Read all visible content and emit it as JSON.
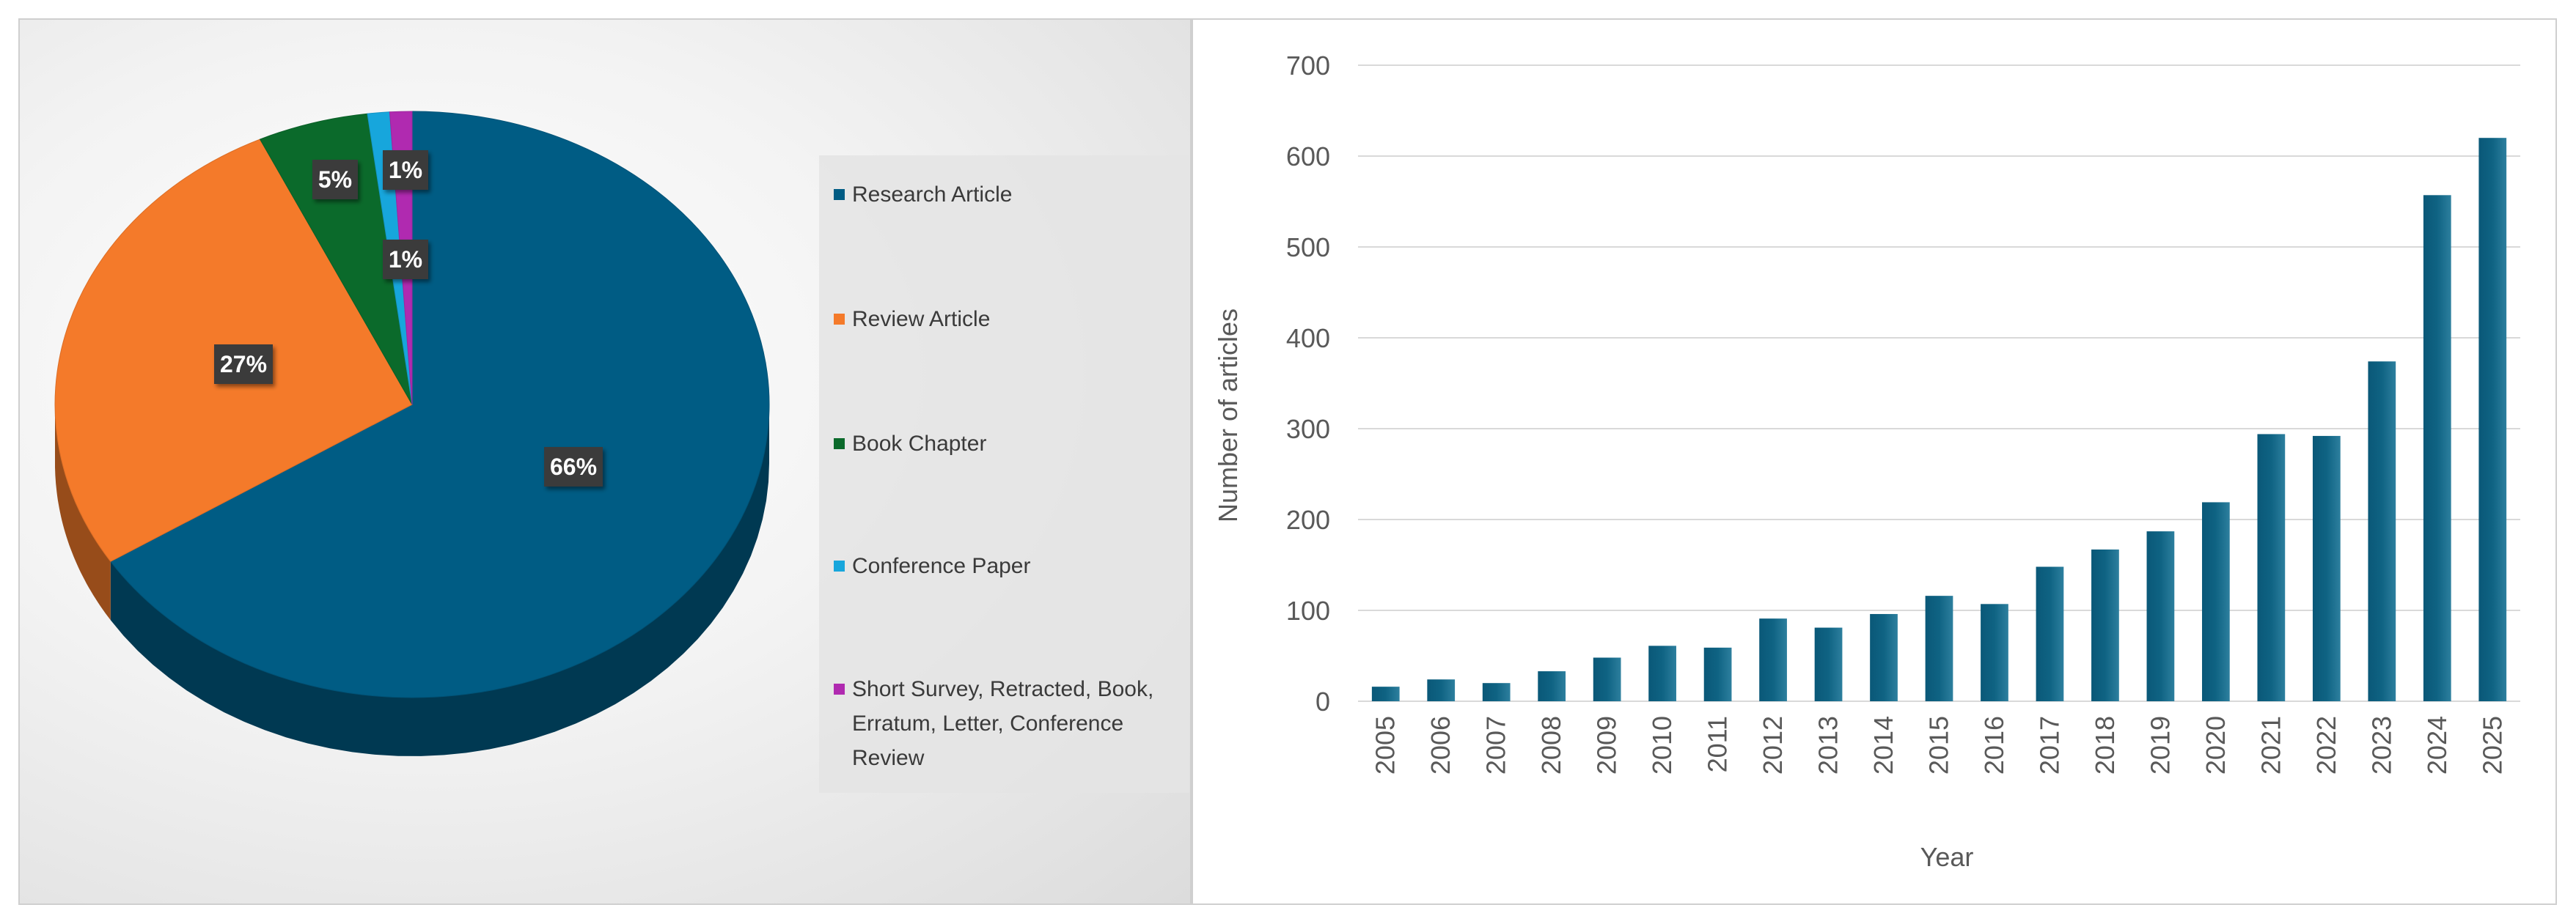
{
  "chart_data": [
    {
      "type": "pie",
      "categories": [
        "Research Article",
        "Review Article",
        "Book Chapter",
        "Conference Paper",
        "Short Survey, Retracted, Book, Erratum, Letter, Conference Review"
      ],
      "values": [
        66,
        27,
        5,
        1,
        1
      ],
      "value_labels": [
        "66%",
        "27%",
        "5%",
        "1%",
        "1%"
      ],
      "colors": [
        "#005c84",
        "#f47a2a",
        "#0b6a2b",
        "#17a6dc",
        "#b02ab0"
      ],
      "legend_position": "right",
      "style": "3d"
    },
    {
      "type": "bar",
      "categories": [
        "2005",
        "2006",
        "2007",
        "2008",
        "2009",
        "2010",
        "2011",
        "2012",
        "2013",
        "2014",
        "2015",
        "2016",
        "2017",
        "2018",
        "2019",
        "2020",
        "2021",
        "2022",
        "2023",
        "2024",
        "2025"
      ],
      "values": [
        16,
        24,
        20,
        33,
        48,
        61,
        59,
        91,
        81,
        96,
        116,
        107,
        148,
        167,
        187,
        219,
        294,
        292,
        374,
        557,
        620
      ],
      "xlabel": "Year",
      "ylabel": "Number of articles",
      "ylim": [
        0,
        700
      ],
      "yticks": [
        0,
        100,
        200,
        300,
        400,
        500,
        600,
        700
      ],
      "grid": true,
      "bar_color": "#0f6383"
    }
  ]
}
